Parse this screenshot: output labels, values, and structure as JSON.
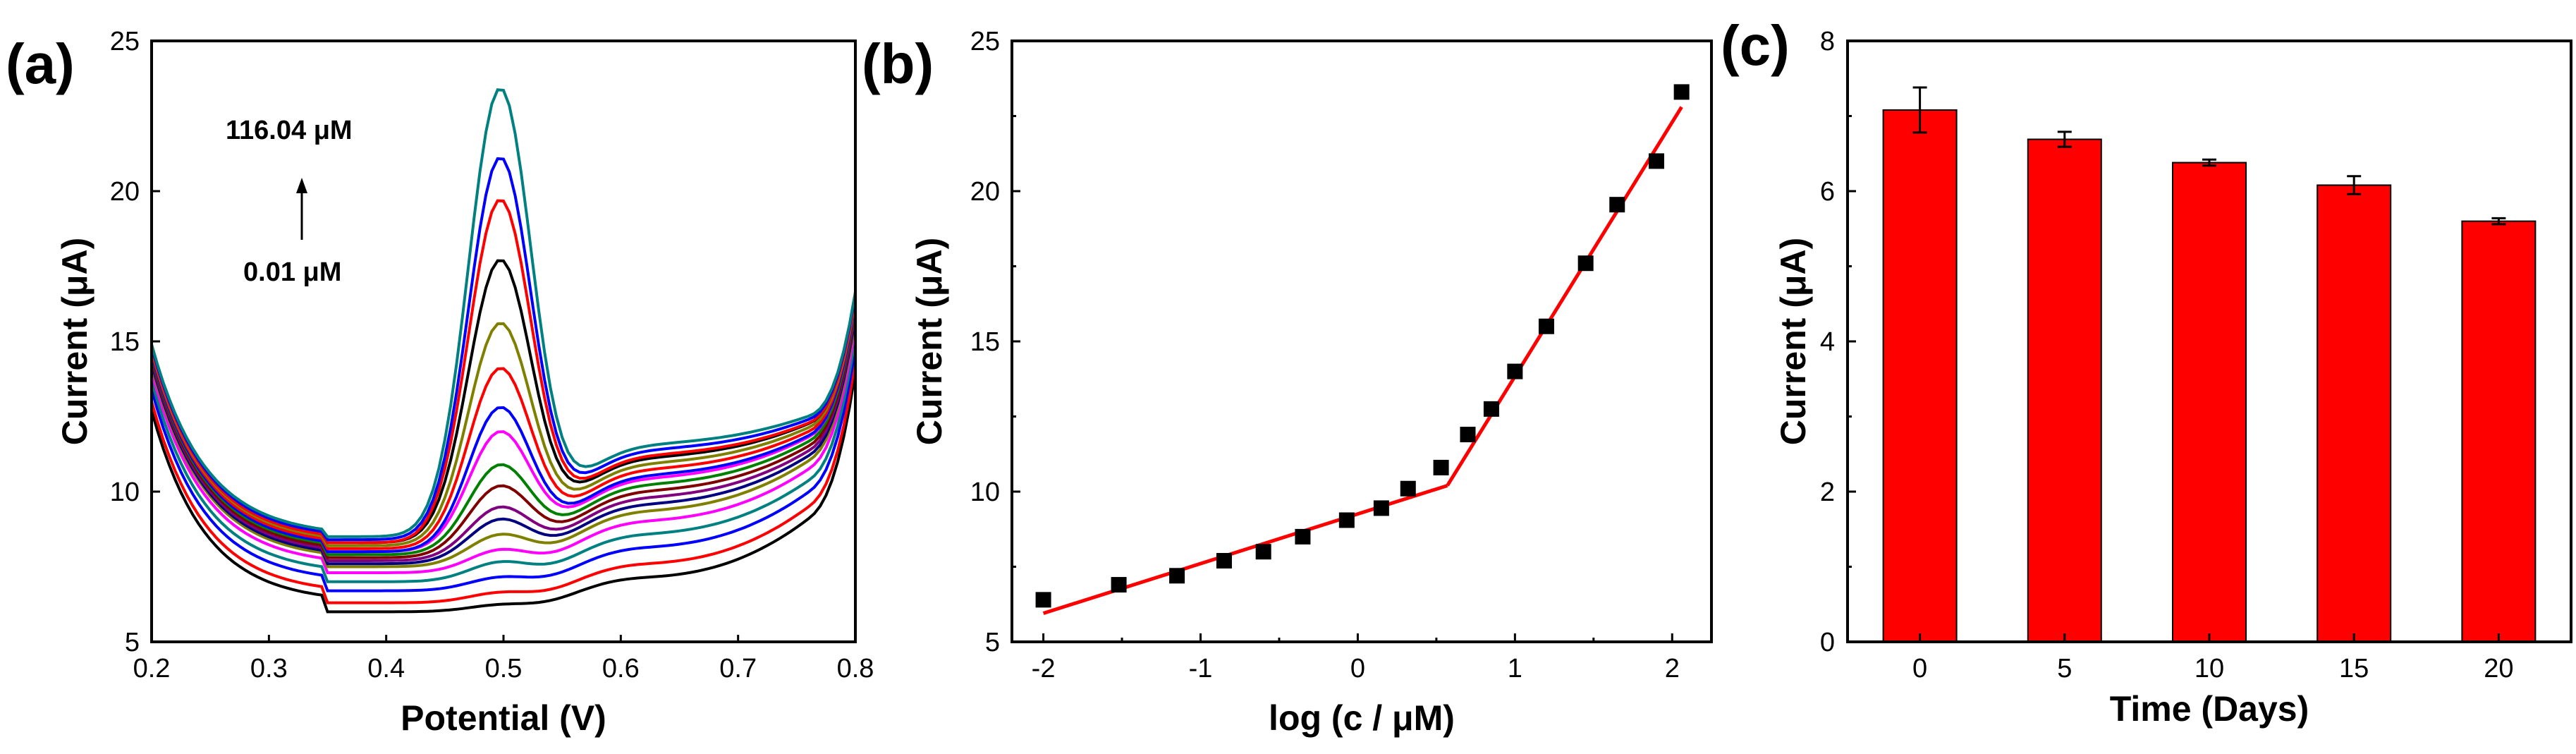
{
  "chart_data": [
    {
      "panel_label": "(a)",
      "type": "line",
      "xlabel": "Potential (V)",
      "ylabel": "Current (μA)",
      "xlim": [
        0.2,
        0.8
      ],
      "ylim": [
        5,
        25
      ],
      "xticks": [
        "0.2",
        "0.3",
        "0.4",
        "0.5",
        "0.6",
        "0.7",
        "0.8"
      ],
      "yticks": [
        "5",
        "10",
        "15",
        "20",
        "25"
      ],
      "annotation_high": "116.04 μM",
      "annotation_low": "0.01 μM",
      "series_colors": [
        "#000000",
        "#ff0000",
        "#0000ff",
        "#008080",
        "#ff00ff",
        "#808000",
        "#000080",
        "#800080",
        "#800000",
        "#008000",
        "#ff00ff",
        "#0000ff",
        "#ff0000",
        "#808000",
        "#000000",
        "#ff0000",
        "#0000ff",
        "#008080"
      ],
      "series": [
        {
          "peak_current": 6.2,
          "baseline_050": 6.0
        },
        {
          "peak_current": 6.6,
          "baseline_050": 6.3
        },
        {
          "peak_current": 7.1,
          "baseline_050": 6.7
        },
        {
          "peak_current": 7.6,
          "baseline_050": 7.0
        },
        {
          "peak_current": 8.0,
          "baseline_050": 7.3
        },
        {
          "peak_current": 8.5,
          "baseline_050": 7.5
        },
        {
          "peak_current": 9.0,
          "baseline_050": 7.6
        },
        {
          "peak_current": 9.4,
          "baseline_050": 7.7
        },
        {
          "peak_current": 10.1,
          "baseline_050": 7.8
        },
        {
          "peak_current": 10.8,
          "baseline_050": 7.9
        },
        {
          "peak_current": 11.9,
          "baseline_050": 8.0
        },
        {
          "peak_current": 12.7,
          "baseline_050": 8.0
        },
        {
          "peak_current": 14.0,
          "baseline_050": 8.1
        },
        {
          "peak_current": 15.5,
          "baseline_050": 8.2
        },
        {
          "peak_current": 17.6,
          "baseline_050": 8.3
        },
        {
          "peak_current": 19.6,
          "baseline_050": 8.3
        },
        {
          "peak_current": 21.0,
          "baseline_050": 8.4
        },
        {
          "peak_current": 23.3,
          "baseline_050": 8.5
        }
      ]
    },
    {
      "panel_label": "(b)",
      "type": "scatter",
      "xlabel": "log (c / μM)",
      "ylabel": "Current (μA)",
      "xlim": [
        -2.2,
        2.25
      ],
      "ylim": [
        5,
        25
      ],
      "xticks": [
        "-2",
        "-1",
        "0",
        "1",
        "2"
      ],
      "yticks": [
        "5",
        "10",
        "15",
        "20",
        "25"
      ],
      "points": [
        [
          -2.0,
          6.4
        ],
        [
          -1.52,
          6.9
        ],
        [
          -1.15,
          7.2
        ],
        [
          -0.85,
          7.7
        ],
        [
          -0.6,
          8.0
        ],
        [
          -0.35,
          8.5
        ],
        [
          -0.07,
          9.05
        ],
        [
          0.15,
          9.45
        ],
        [
          0.32,
          10.1
        ],
        [
          0.53,
          10.8
        ],
        [
          0.7,
          11.9
        ],
        [
          0.85,
          12.75
        ],
        [
          1.0,
          14.0
        ],
        [
          1.2,
          15.5
        ],
        [
          1.45,
          17.6
        ],
        [
          1.65,
          19.55
        ],
        [
          1.9,
          21.0
        ],
        [
          2.06,
          23.3
        ]
      ],
      "fit_lines": [
        {
          "x": [
            -2.0,
            0.57
          ],
          "y": [
            5.95,
            10.2
          ]
        },
        {
          "x": [
            0.57,
            2.06
          ],
          "y": [
            10.2,
            22.8
          ]
        }
      ],
      "fit_color": "#ff0000"
    },
    {
      "panel_label": "(c)",
      "type": "bar",
      "xlabel": "Time (Days)",
      "ylabel": "Current (μA)",
      "categories": [
        "0",
        "5",
        "10",
        "15",
        "20"
      ],
      "x": [
        0,
        5,
        10,
        15,
        20
      ],
      "values": [
        7.08,
        6.69,
        6.38,
        6.08,
        5.6
      ],
      "errors": [
        0.3,
        0.1,
        0.04,
        0.12,
        0.04
      ],
      "xlim": [
        -2.5,
        22.5
      ],
      "ylim": [
        0,
        8
      ],
      "yticks": [
        "0",
        "2",
        "4",
        "6",
        "8"
      ],
      "bar_color": "#ff0000"
    }
  ]
}
